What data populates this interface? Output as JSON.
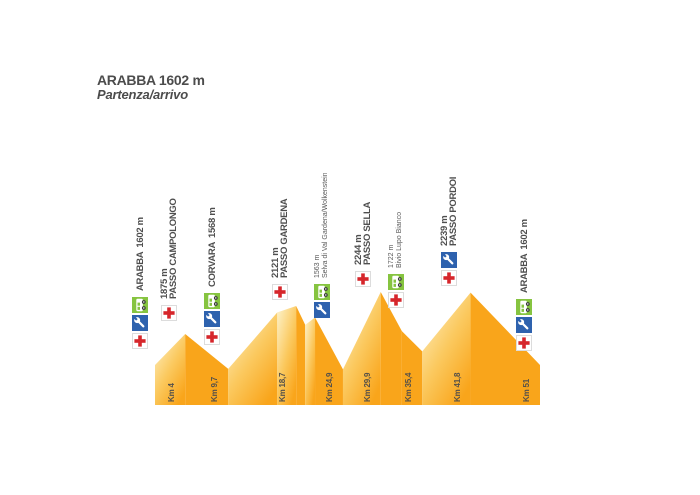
{
  "title": {
    "line1": "ARABBA 1602 m",
    "line2": "Partenza/arrivo"
  },
  "colors": {
    "mountain_orange": "#F9A51B",
    "mountain_light": "#FDF3CC",
    "medical_red": "#D6262B",
    "mechanic_blue": "#2E62AE",
    "refreshment_green": "#86C440",
    "text_gray": "#4E4E4E"
  },
  "waypoints": [
    {
      "name": "ARABBA",
      "altitude": "1602 m",
      "km": 0,
      "km_label": null,
      "emphasis": "bold",
      "single_line": true,
      "services": [
        "medical",
        "mechanic",
        "refreshment"
      ]
    },
    {
      "name": "PASSO CAMPOLONGO",
      "altitude": "1875 m",
      "km": 4,
      "km_label": "Km 4",
      "emphasis": "bold",
      "single_line": false,
      "services": [
        "medical"
      ]
    },
    {
      "name": "CORVARA",
      "altitude": "1568 m",
      "km": 9.7,
      "km_label": "Km 9,7",
      "emphasis": "bold",
      "single_line": true,
      "services": [
        "medical",
        "mechanic",
        "refreshment"
      ]
    },
    {
      "name": "PASSO GARDENA",
      "altitude": "2121 m",
      "km": 18.7,
      "km_label": "Km 18,7",
      "emphasis": "bold",
      "single_line": false,
      "services": [
        "medical"
      ]
    },
    {
      "name": "Selva di Val Gardena/Wolkenstein",
      "altitude": "1563 m",
      "km": 24.9,
      "km_label": "Km 24,9",
      "emphasis": "thin",
      "single_line": false,
      "services": [
        "mechanic",
        "refreshment"
      ]
    },
    {
      "name": "PASSO SELLA",
      "altitude": "2244 m",
      "km": 29.9,
      "km_label": "Km 29,9",
      "emphasis": "bold",
      "single_line": false,
      "services": [
        "medical"
      ]
    },
    {
      "name": "Bivio Lupo Bianco",
      "altitude": "1722 m",
      "km": 35.4,
      "km_label": "Km 35,4",
      "emphasis": "thin",
      "single_line": false,
      "services": [
        "medical",
        "refreshment"
      ]
    },
    {
      "name": "PASSO PORDOI",
      "altitude": "2239 m",
      "km": 41.8,
      "km_label": "Km 41,8",
      "emphasis": "bold",
      "single_line": false,
      "services": [
        "medical",
        "mechanic"
      ]
    },
    {
      "name": "ARABBA",
      "altitude": "1602 m",
      "km": 51,
      "km_label": "Km 51",
      "emphasis": "bold",
      "single_line": true,
      "services": [
        "medical",
        "mechanic",
        "refreshment"
      ]
    }
  ],
  "chart_data": {
    "type": "area",
    "title": "ARABBA 1602 m",
    "subtitle": "Partenza/arrivo",
    "xlabel": "",
    "ylabel": "",
    "x_unit": "km",
    "y_unit": "m",
    "xlim": [
      0,
      51
    ],
    "ylim": [
      1250,
      2300
    ],
    "grid": false,
    "legend": false,
    "profile": [
      [
        0,
        1602
      ],
      [
        4,
        1875
      ],
      [
        9.7,
        1568
      ],
      [
        16.2,
        2065
      ],
      [
        18.7,
        2121
      ],
      [
        19.9,
        1955
      ],
      [
        21.2,
        2020
      ],
      [
        24.9,
        1563
      ],
      [
        29.9,
        2244
      ],
      [
        32.7,
        1900
      ],
      [
        35.4,
        1722
      ],
      [
        41.8,
        2239
      ],
      [
        51,
        1602
      ]
    ],
    "labeled_points": [
      {
        "km": 0,
        "elevation_m": 1602,
        "label": "ARABBA"
      },
      {
        "km": 4,
        "elevation_m": 1875,
        "label": "PASSO CAMPOLONGO"
      },
      {
        "km": 9.7,
        "elevation_m": 1568,
        "label": "CORVARA"
      },
      {
        "km": 18.7,
        "elevation_m": 2121,
        "label": "PASSO GARDENA"
      },
      {
        "km": 24.9,
        "elevation_m": 1563,
        "label": "Selva di Val Gardena/Wolkenstein"
      },
      {
        "km": 29.9,
        "elevation_m": 2244,
        "label": "PASSO SELLA"
      },
      {
        "km": 35.4,
        "elevation_m": 1722,
        "label": "Bivio Lupo Bianco"
      },
      {
        "km": 41.8,
        "elevation_m": 2239,
        "label": "PASSO PORDOI"
      },
      {
        "km": 51,
        "elevation_m": 1602,
        "label": "ARABBA"
      }
    ]
  }
}
